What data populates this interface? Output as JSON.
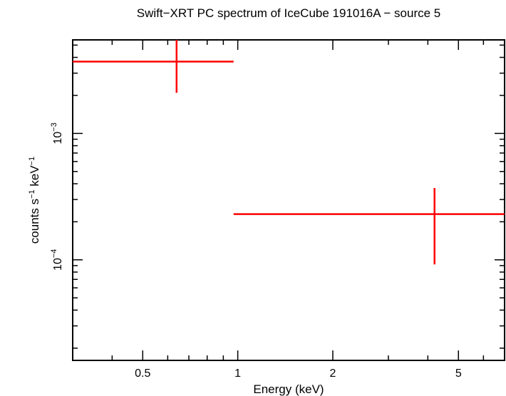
{
  "chart_data": {
    "type": "scatter",
    "title": "Swift−XRT PC spectrum of IceCube 191016A − source 5",
    "xlabel": "Energy (keV)",
    "ylabel": {
      "pre1": "counts s",
      "sup1": "−1",
      "mid": " keV",
      "sup2": "−1"
    },
    "x_scale": "log",
    "y_scale": "log",
    "xlim": [
      0.3,
      7.0
    ],
    "ylim": [
      1.6e-05,
      0.0055
    ],
    "x_ticks": [
      {
        "value": 0.5,
        "label": "0.5"
      },
      {
        "value": 1,
        "label": "1"
      },
      {
        "value": 2,
        "label": "2"
      },
      {
        "value": 5,
        "label": "5"
      }
    ],
    "y_ticks": [
      {
        "value": 0.001,
        "base": "10",
        "exp": "−3"
      },
      {
        "value": 0.0001,
        "base": "10",
        "exp": "−4"
      }
    ],
    "grid": false,
    "color": "#ff0000",
    "points": [
      {
        "x": 0.64,
        "x_lo": 0.3,
        "x_hi": 0.97,
        "y": 0.0037,
        "y_lo": 0.0021,
        "y_hi": 0.0055
      },
      {
        "x": 4.2,
        "x_lo": 0.97,
        "x_hi": 7.0,
        "y": 0.00023,
        "y_lo": 9.2e-05,
        "y_hi": 0.00037
      }
    ]
  }
}
